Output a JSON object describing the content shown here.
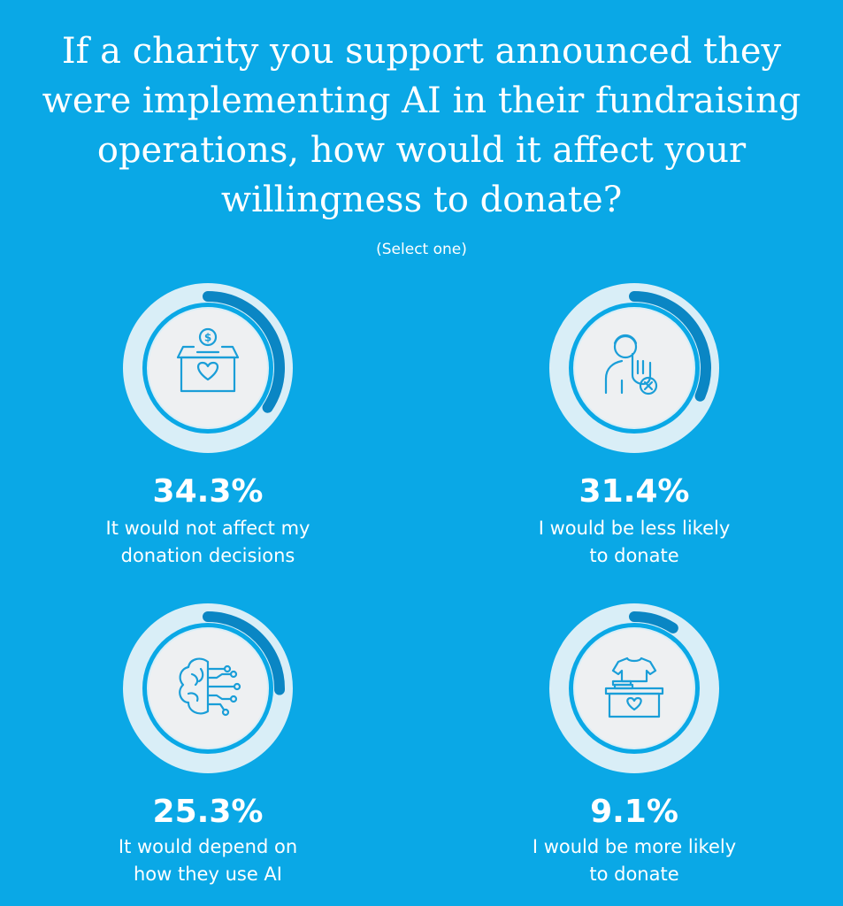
{
  "title": "If a charity you support announced they were implementing AI in their fundraising operations, how would it affect your willingness to donate?",
  "subtitle": "(Select one)",
  "colors": {
    "background": "#0aa8e6",
    "ring_track": "#d9eef7",
    "ring_fill": "#0a86c4",
    "inner_circle": "#eef0f2",
    "icon_stroke": "#1a9ed8"
  },
  "chart_data": {
    "type": "pie",
    "title": "If a charity you support announced they were implementing AI in their fundraising operations, how would it affect your willingness to donate?",
    "subtitle": "(Select one)",
    "unit": "%",
    "categories": [
      "It would not affect my donation decisions",
      "I would be less likely to donate",
      "It would depend on how they use AI",
      "I would be more likely to donate"
    ],
    "values": [
      34.3,
      31.4,
      25.3,
      9.1
    ],
    "items": [
      {
        "value": 34.3,
        "value_label": "34.3%",
        "label_lines": [
          "It would not affect my",
          "donation decisions"
        ],
        "icon": "donation-box-icon"
      },
      {
        "value": 31.4,
        "value_label": "31.4%",
        "label_lines": [
          "I would be less likely",
          "to donate"
        ],
        "icon": "person-refuse-icon"
      },
      {
        "value": 25.3,
        "value_label": "25.3%",
        "label_lines": [
          "It would depend on",
          "how they use AI"
        ],
        "icon": "ai-brain-icon"
      },
      {
        "value": 9.1,
        "value_label": "9.1%",
        "label_lines": [
          "I would be more likely",
          "to donate"
        ],
        "icon": "clothes-donation-icon"
      }
    ]
  }
}
